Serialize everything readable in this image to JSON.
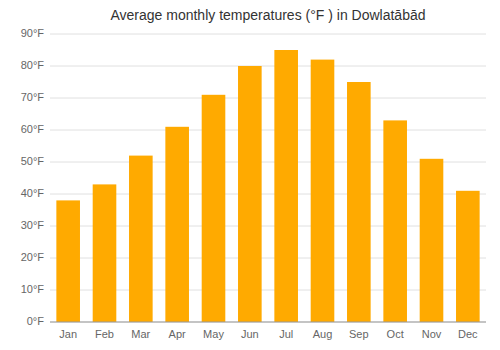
{
  "chart_data": {
    "type": "bar",
    "title": "Average monthly temperatures (°F ) in Dowlatābād",
    "categories": [
      "Jan",
      "Feb",
      "Mar",
      "Apr",
      "May",
      "Jun",
      "Jul",
      "Aug",
      "Sep",
      "Oct",
      "Nov",
      "Dec"
    ],
    "values": [
      38,
      43,
      52,
      61,
      71,
      80,
      85,
      82,
      75,
      63,
      51,
      41
    ],
    "color": "#FFAA00",
    "ylim": [
      0,
      90
    ],
    "yticks": [
      {
        "value": 0,
        "label": "0°F"
      },
      {
        "value": 10,
        "label": "10°F"
      },
      {
        "value": 20,
        "label": "20°F"
      },
      {
        "value": 30,
        "label": "30°F"
      },
      {
        "value": 40,
        "label": "40°F"
      },
      {
        "value": 50,
        "label": "50°F"
      },
      {
        "value": 60,
        "label": "60°F"
      },
      {
        "value": 70,
        "label": "70°F"
      },
      {
        "value": 80,
        "label": "80°F"
      },
      {
        "value": 90,
        "label": "90°F"
      }
    ],
    "grid": true
  }
}
